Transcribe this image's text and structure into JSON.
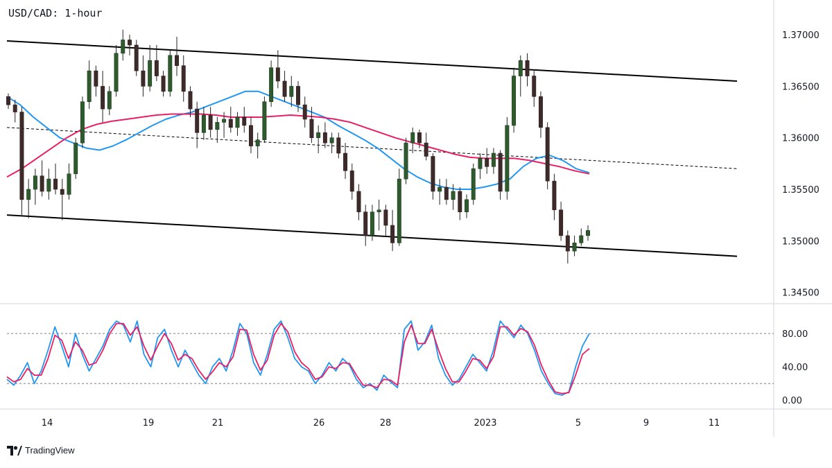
{
  "chart_data": {
    "type": "candlestick",
    "title": "USD/CAD: 1-hour",
    "price_axis": {
      "ticks": [
        "1.37000",
        "1.36500",
        "1.36000",
        "1.35500",
        "1.35000",
        "1.34500"
      ],
      "tick_values": [
        1.37,
        1.365,
        1.36,
        1.355,
        1.35,
        1.345
      ],
      "range": [
        1.3443,
        1.3727
      ]
    },
    "date_axis": {
      "ticks": [
        "14",
        "19",
        "21",
        "26",
        "28",
        "2023",
        "5",
        "9",
        "11"
      ],
      "range_days": [
        "2022-12-13",
        "2023-01-14"
      ]
    },
    "candles": [
      [
        1.364,
        1.3643,
        1.3628,
        1.3632
      ],
      [
        1.3632,
        1.3637,
        1.3615,
        1.3625
      ],
      [
        1.3625,
        1.363,
        1.3525,
        1.354
      ],
      [
        1.354,
        1.356,
        1.3522,
        1.355
      ],
      [
        1.355,
        1.357,
        1.3535,
        1.3563
      ],
      [
        1.3563,
        1.3578,
        1.3543,
        1.3548
      ],
      [
        1.3548,
        1.357,
        1.354,
        1.356
      ],
      [
        1.356,
        1.3575,
        1.3545,
        1.355
      ],
      [
        1.355,
        1.356,
        1.352,
        1.3545
      ],
      [
        1.3545,
        1.3575,
        1.354,
        1.3565
      ],
      [
        1.3565,
        1.36,
        1.356,
        1.3595
      ],
      [
        1.3595,
        1.364,
        1.359,
        1.3635
      ],
      [
        1.3635,
        1.3675,
        1.3628,
        1.3665
      ],
      [
        1.3665,
        1.367,
        1.364,
        1.365
      ],
      [
        1.365,
        1.3665,
        1.3615,
        1.3628
      ],
      [
        1.3628,
        1.365,
        1.3622,
        1.3645
      ],
      [
        1.3645,
        1.369,
        1.364,
        1.3682
      ],
      [
        1.3682,
        1.3705,
        1.3675,
        1.3695
      ],
      [
        1.3695,
        1.37,
        1.368,
        1.369
      ],
      [
        1.369,
        1.3695,
        1.366,
        1.3665
      ],
      [
        1.3665,
        1.368,
        1.364,
        1.365
      ],
      [
        1.365,
        1.369,
        1.3645,
        1.3675
      ],
      [
        1.3675,
        1.369,
        1.3655,
        1.366
      ],
      [
        1.366,
        1.3665,
        1.364,
        1.3645
      ],
      [
        1.3645,
        1.3685,
        1.364,
        1.368
      ],
      [
        1.368,
        1.3698,
        1.366,
        1.367
      ],
      [
        1.367,
        1.368,
        1.3635,
        1.3645
      ],
      [
        1.3645,
        1.365,
        1.362,
        1.3628
      ],
      [
        1.3628,
        1.3635,
        1.359,
        1.3605
      ],
      [
        1.3605,
        1.363,
        1.3598,
        1.3622
      ],
      [
        1.3622,
        1.363,
        1.36,
        1.3608
      ],
      [
        1.3608,
        1.362,
        1.3595,
        1.3615
      ],
      [
        1.3615,
        1.3625,
        1.36,
        1.3618
      ],
      [
        1.3618,
        1.363,
        1.3605,
        1.361
      ],
      [
        1.361,
        1.3625,
        1.3602,
        1.362
      ],
      [
        1.362,
        1.363,
        1.3605,
        1.3612
      ],
      [
        1.3612,
        1.362,
        1.3585,
        1.3592
      ],
      [
        1.3592,
        1.3605,
        1.358,
        1.3598
      ],
      [
        1.3598,
        1.364,
        1.3595,
        1.3635
      ],
      [
        1.3635,
        1.3675,
        1.363,
        1.3668
      ],
      [
        1.3668,
        1.3685,
        1.3648,
        1.3655
      ],
      [
        1.3655,
        1.3665,
        1.3635,
        1.364
      ],
      [
        1.364,
        1.366,
        1.363,
        1.365
      ],
      [
        1.365,
        1.3655,
        1.3625,
        1.3632
      ],
      [
        1.3632,
        1.364,
        1.361,
        1.3618
      ],
      [
        1.3618,
        1.363,
        1.3595,
        1.36
      ],
      [
        1.36,
        1.3612,
        1.3585,
        1.3605
      ],
      [
        1.3605,
        1.3615,
        1.359,
        1.3595
      ],
      [
        1.3595,
        1.3605,
        1.3585,
        1.36
      ],
      [
        1.36,
        1.3605,
        1.358,
        1.3585
      ],
      [
        1.3585,
        1.3595,
        1.356,
        1.3568
      ],
      [
        1.3568,
        1.3575,
        1.354,
        1.3548
      ],
      [
        1.3548,
        1.3555,
        1.352,
        1.3528
      ],
      [
        1.3528,
        1.3535,
        1.3495,
        1.3505
      ],
      [
        1.3505,
        1.3535,
        1.35,
        1.3528
      ],
      [
        1.3528,
        1.354,
        1.351,
        1.353
      ],
      [
        1.353,
        1.3535,
        1.3505,
        1.3515
      ],
      [
        1.3515,
        1.353,
        1.349,
        1.3498
      ],
      [
        1.3498,
        1.357,
        1.3495,
        1.356
      ],
      [
        1.356,
        1.36,
        1.3555,
        1.3595
      ],
      [
        1.3595,
        1.361,
        1.3585,
        1.3605
      ],
      [
        1.3605,
        1.3608,
        1.359,
        1.3595
      ],
      [
        1.3595,
        1.3605,
        1.3578,
        1.3582
      ],
      [
        1.3582,
        1.3585,
        1.354,
        1.3548
      ],
      [
        1.3548,
        1.356,
        1.3535,
        1.3552
      ],
      [
        1.3552,
        1.356,
        1.3535,
        1.354
      ],
      [
        1.354,
        1.3555,
        1.353,
        1.3548
      ],
      [
        1.3548,
        1.3552,
        1.352,
        1.3528
      ],
      [
        1.3528,
        1.3545,
        1.3522,
        1.354
      ],
      [
        1.354,
        1.3575,
        1.3535,
        1.357
      ],
      [
        1.357,
        1.3585,
        1.356,
        1.358
      ],
      [
        1.358,
        1.359,
        1.3565,
        1.3572
      ],
      [
        1.3572,
        1.359,
        1.3565,
        1.3585
      ],
      [
        1.3585,
        1.3588,
        1.354,
        1.3548
      ],
      [
        1.3548,
        1.362,
        1.354,
        1.3612
      ],
      [
        1.3612,
        1.3668,
        1.3605,
        1.366
      ],
      [
        1.366,
        1.368,
        1.364,
        1.3675
      ],
      [
        1.3675,
        1.3682,
        1.365,
        1.366
      ],
      [
        1.366,
        1.3665,
        1.363,
        1.364
      ],
      [
        1.364,
        1.3645,
        1.36,
        1.361
      ],
      [
        1.361,
        1.3615,
        1.355,
        1.3558
      ],
      [
        1.3558,
        1.3565,
        1.352,
        1.353
      ],
      [
        1.353,
        1.3538,
        1.35,
        1.3505
      ],
      [
        1.3505,
        1.351,
        1.3478,
        1.349
      ],
      [
        1.349,
        1.3505,
        1.3485,
        1.3498
      ],
      [
        1.3498,
        1.3512,
        1.3495,
        1.3505
      ],
      [
        1.3505,
        1.3515,
        1.35,
        1.351
      ]
    ],
    "moving_averages": [
      {
        "color": "#2196F3",
        "values": [
          1.364,
          1.3632,
          1.362,
          1.361,
          1.36,
          1.3595,
          1.359,
          1.3588,
          1.3592,
          1.3598,
          1.3605,
          1.3612,
          1.3618,
          1.3622,
          1.3625,
          1.363,
          1.3635,
          1.364,
          1.3645,
          1.3645,
          1.364,
          1.3635,
          1.363,
          1.3625,
          1.362,
          1.3612,
          1.3605,
          1.3598,
          1.359,
          1.358,
          1.357,
          1.3562,
          1.3556,
          1.3552,
          1.355,
          1.355,
          1.3552,
          1.3555,
          1.356,
          1.3572,
          1.358,
          1.3583,
          1.3578,
          1.357,
          1.3566
        ]
      },
      {
        "color": "#E91E63",
        "values": [
          1.3562,
          1.357,
          1.358,
          1.359,
          1.36,
          1.3608,
          1.3613,
          1.3616,
          1.3618,
          1.362,
          1.3622,
          1.3623,
          1.3623,
          1.3623,
          1.3622,
          1.362,
          1.362,
          1.362,
          1.3621,
          1.3622,
          1.3621,
          1.362,
          1.3618,
          1.3615,
          1.361,
          1.3605,
          1.36,
          1.3596,
          1.3592,
          1.3588,
          1.3584,
          1.3581,
          1.358,
          1.358,
          1.358,
          1.3578,
          1.3575,
          1.3572,
          1.3568,
          1.3565
        ]
      }
    ],
    "channel_lines": [
      {
        "style": "solid",
        "from_price": 1.3694,
        "to_price": 1.3655
      },
      {
        "style": "solid",
        "from_price": 1.3525,
        "to_price": 1.3485
      },
      {
        "style": "dashed",
        "from_price": 1.361,
        "to_price": 1.357
      }
    ],
    "oscillator": {
      "ticks": [
        "80.00",
        "40.00",
        "0.00"
      ],
      "tick_values": [
        80,
        40,
        0
      ],
      "levels": [
        80,
        20
      ],
      "k_color": "#2196F3",
      "d_color": "#E91E63",
      "k": [
        25,
        18,
        30,
        45,
        20,
        35,
        60,
        88,
        65,
        40,
        80,
        55,
        35,
        50,
        65,
        85,
        95,
        90,
        70,
        95,
        55,
        40,
        75,
        85,
        60,
        40,
        60,
        45,
        30,
        20,
        40,
        50,
        35,
        60,
        92,
        80,
        45,
        30,
        55,
        85,
        95,
        75,
        50,
        40,
        35,
        20,
        30,
        45,
        35,
        50,
        42,
        25,
        15,
        20,
        12,
        30,
        22,
        15,
        85,
        95,
        60,
        70,
        90,
        50,
        30,
        18,
        25,
        40,
        55,
        45,
        35,
        60,
        95,
        85,
        75,
        90,
        80,
        60,
        35,
        20,
        8,
        6,
        10,
        40,
        65,
        80
      ],
      "d": [
        28,
        22,
        25,
        38,
        30,
        30,
        50,
        78,
        72,
        50,
        70,
        60,
        42,
        45,
        60,
        80,
        92,
        92,
        78,
        88,
        65,
        48,
        65,
        80,
        68,
        48,
        55,
        50,
        36,
        25,
        34,
        45,
        40,
        52,
        85,
        84,
        55,
        36,
        48,
        78,
        92,
        82,
        58,
        45,
        38,
        25,
        28,
        40,
        38,
        45,
        44,
        30,
        18,
        18,
        15,
        25,
        24,
        18,
        70,
        90,
        68,
        68,
        85,
        60,
        38,
        22,
        22,
        35,
        50,
        48,
        38,
        52,
        88,
        88,
        78,
        86,
        82,
        66,
        42,
        24,
        10,
        8,
        9,
        30,
        55,
        62
      ]
    }
  },
  "footer": {
    "brand": "TradingView"
  }
}
